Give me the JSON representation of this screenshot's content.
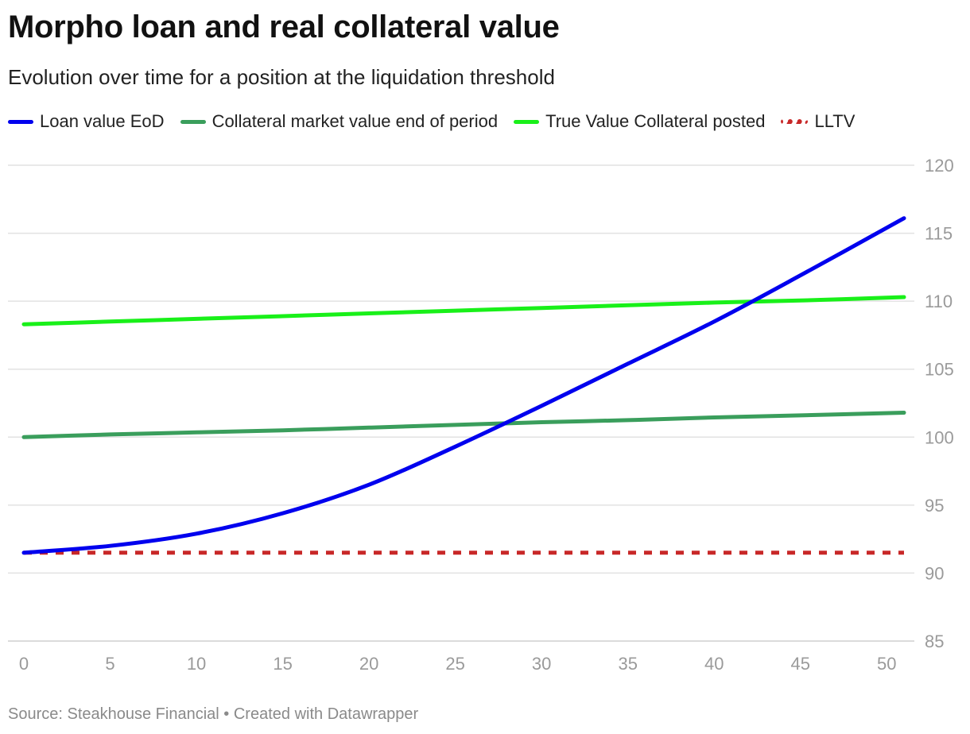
{
  "title": "Morpho loan and real collateral value",
  "subtitle": "Evolution over time for a position at the liquidation threshold",
  "footer": {
    "source": "Source: Steakhouse Financial",
    "separator": "•",
    "created": "Created with Datawrapper"
  },
  "legend": [
    {
      "label": "Loan value EoD",
      "color": "#0000ee",
      "style": "solid"
    },
    {
      "label": "Collateral market value end of period",
      "color": "#3a9e5c",
      "style": "solid"
    },
    {
      "label": "True Value Collateral posted",
      "color": "#19f019",
      "style": "solid"
    },
    {
      "label": "LLTV",
      "color": "#c82828",
      "style": "dashed"
    }
  ],
  "chart_data": {
    "type": "line",
    "title": "Morpho loan and real collateral value",
    "subtitle": "Evolution over time for a position at the liquidation threshold",
    "xlabel": "",
    "ylabel": "",
    "xlim": [
      0,
      51
    ],
    "ylim": [
      85,
      120
    ],
    "x_ticks": [
      0,
      5,
      10,
      15,
      20,
      25,
      30,
      35,
      40,
      45,
      50
    ],
    "y_ticks": [
      85,
      90,
      95,
      100,
      105,
      110,
      115,
      120
    ],
    "y_axis_position": "right",
    "grid": true,
    "legend_position": "top-left",
    "series": [
      {
        "name": "Loan value EoD",
        "color": "#0000ee",
        "style": "solid",
        "x": [
          0,
          5,
          10,
          15,
          20,
          25,
          30,
          35,
          40,
          45,
          51
        ],
        "y": [
          91.5,
          92.0,
          92.9,
          94.4,
          96.5,
          99.3,
          102.3,
          105.4,
          108.5,
          111.9,
          116.1
        ]
      },
      {
        "name": "Collateral market value end of period",
        "color": "#3a9e5c",
        "style": "solid",
        "x": [
          0,
          5,
          10,
          15,
          20,
          25,
          30,
          35,
          40,
          45,
          51
        ],
        "y": [
          100.0,
          100.2,
          100.35,
          100.5,
          100.7,
          100.9,
          101.1,
          101.25,
          101.45,
          101.6,
          101.8
        ]
      },
      {
        "name": "True Value Collateral posted",
        "color": "#19f019",
        "style": "solid",
        "x": [
          0,
          5,
          10,
          15,
          20,
          25,
          30,
          35,
          40,
          45,
          51
        ],
        "y": [
          108.3,
          108.5,
          108.7,
          108.9,
          109.1,
          109.3,
          109.5,
          109.7,
          109.9,
          110.05,
          110.3
        ]
      },
      {
        "name": "LLTV",
        "color": "#c82828",
        "style": "dashed",
        "x": [
          0,
          51
        ],
        "y": [
          91.5,
          91.5
        ]
      }
    ]
  }
}
